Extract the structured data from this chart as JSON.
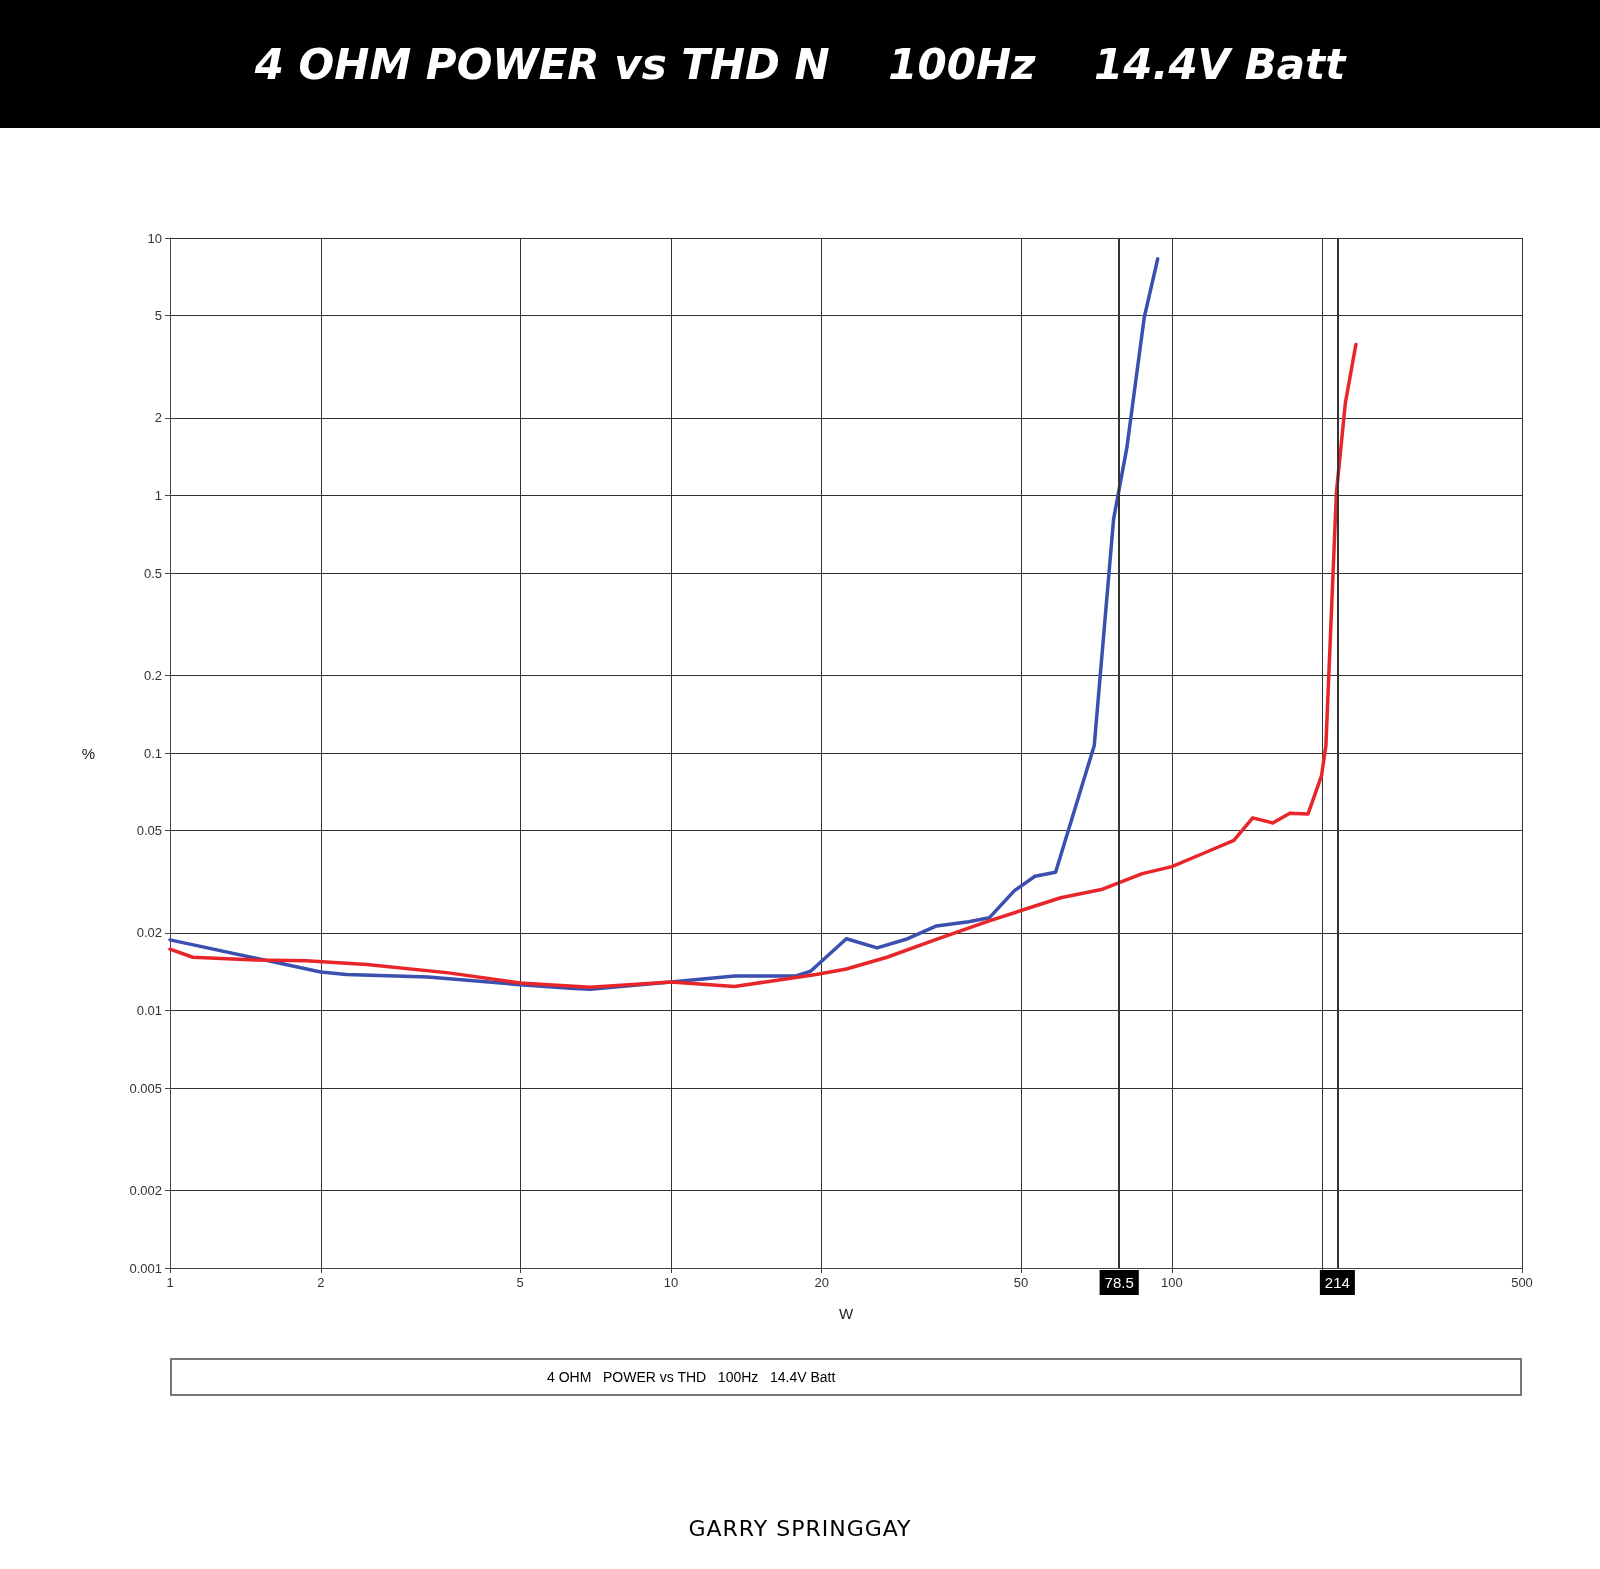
{
  "chart_data": {
    "type": "line",
    "title": "4 OHM POWER vs THD N    100Hz    14.4V Batt",
    "xlabel": "W",
    "ylabel": "%",
    "log": "xy",
    "grid": true,
    "marker": "none",
    "line_style": "solid",
    "xlim": [
      1,
      500
    ],
    "xticks": [
      1,
      2,
      5,
      10,
      20,
      50,
      100,
      {
        "value": 200,
        "label": null
      },
      500
    ],
    "ylim": [
      0.001,
      10
    ],
    "yticks": [
      0.001,
      0.002,
      0.005,
      0.01,
      0.02,
      0.05,
      0.1,
      0.2,
      0.5,
      1,
      2,
      5,
      10
    ],
    "ref_lines": [
      {
        "axis": "x",
        "value": 78.5,
        "label": "78.5",
        "color": "#333333"
      },
      {
        "axis": "x",
        "value": 214,
        "label": "214",
        "color": "#333333"
      }
    ],
    "annotations": [
      "4 OHM   POWER vs THD   100Hz   14.4V Batt",
      "GARRY SPRINGGAY"
    ],
    "series": [
      {
        "color": "#3a4fae",
        "x": [
          1,
          2,
          2.25,
          3.27,
          5,
          6.3,
          6.9,
          10,
          13.4,
          17.7,
          19,
          22.4,
          25.8,
          29.7,
          33.9,
          39.3,
          43.2,
          48.5,
          53.3,
          58.6,
          64.3,
          70,
          76.5,
          81.3,
          88.1,
          93.7
        ],
        "values": [
          0.0188,
          0.0141,
          0.0138,
          0.0135,
          0.0126,
          0.0122,
          0.0121,
          0.0129,
          0.0136,
          0.0136,
          0.0142,
          0.019,
          0.0175,
          0.019,
          0.0213,
          0.0221,
          0.0229,
          0.0292,
          0.0332,
          0.0344,
          0.0623,
          0.107,
          0.81,
          1.53,
          4.93,
          8.3
        ]
      },
      {
        "color": "#e8262a",
        "x": [
          1,
          1.11,
          1.48,
          1.87,
          2.47,
          3.6,
          5,
          6.9,
          10,
          13.4,
          19.5,
          22.4,
          27,
          34.2,
          43.2,
          60,
          72.3,
          87.3,
          100,
          115.7,
          133,
          145,
          159,
          172,
          187,
          199,
          203,
          213,
          222,
          233
        ],
        "values": [
          0.0173,
          0.0161,
          0.0157,
          0.0156,
          0.0151,
          0.014,
          0.0128,
          0.0123,
          0.0129,
          0.0124,
          0.0138,
          0.0145,
          0.0161,
          0.019,
          0.0223,
          0.0274,
          0.0295,
          0.034,
          0.0362,
          0.0408,
          0.0458,
          0.056,
          0.0535,
          0.0584,
          0.058,
          0.0817,
          0.107,
          1.02,
          2.29,
          3.86
        ]
      }
    ]
  }
}
